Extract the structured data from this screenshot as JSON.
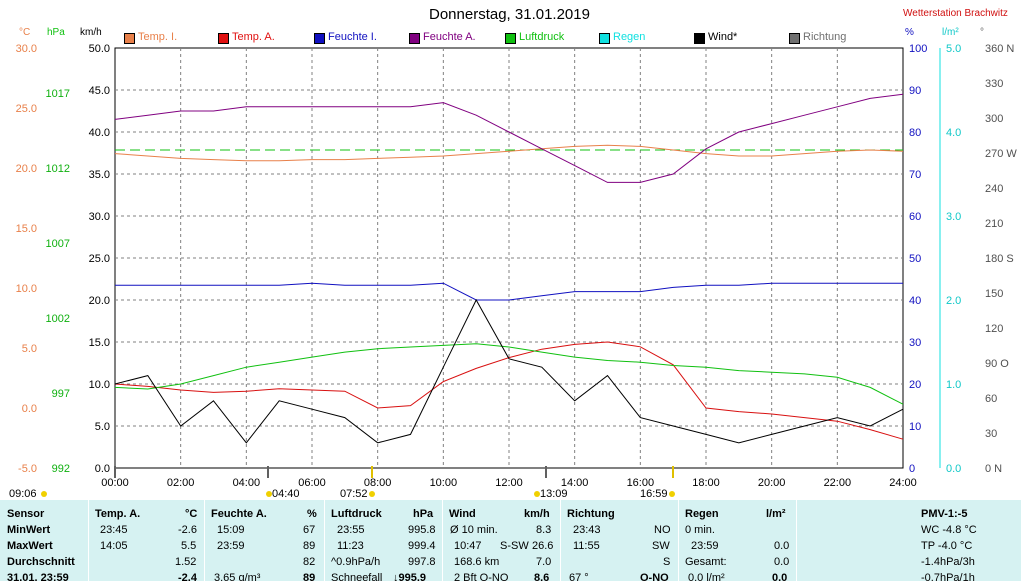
{
  "header": {
    "title": "Donnerstag, 31.01.2019",
    "station": "Wetterstation Brachwitz"
  },
  "colors": {
    "temp_inside": "#e8804a",
    "temp_outside": "#d81010",
    "humidity_inside": "#1010c0",
    "humidity_outside": "#800080",
    "pressure": "#10c010",
    "rain": "#10e0e0",
    "wind": "#000000",
    "direction": "#606060",
    "panel_bg": "#d6f2f2"
  },
  "legend": [
    {
      "label": "Temp. I.",
      "color": "#e8804a"
    },
    {
      "label": "Temp. A.",
      "color": "#e01010"
    },
    {
      "label": "Feuchte I.",
      "color": "#1010c0"
    },
    {
      "label": "Feuchte A.",
      "color": "#800080"
    },
    {
      "label": "Luftdruck",
      "color": "#10c010"
    },
    {
      "label": "Regen",
      "color": "#10e0e0"
    },
    {
      "label": "Wind*",
      "color": "#000000"
    },
    {
      "label": "Richtung",
      "color": "#707070"
    }
  ],
  "axes": {
    "celsius": {
      "unit": "°C",
      "ticks": [
        "30.0",
        "25.0",
        "20.0",
        "15.0",
        "10.0",
        "5.0",
        "0.0",
        "-5.0"
      ]
    },
    "hpa": {
      "unit": "hPa",
      "ticks": [
        "1017",
        "1012",
        "1007",
        "1002",
        "997",
        "992"
      ]
    },
    "kmh": {
      "unit": "km/h",
      "ticks": [
        "50.0",
        "45.0",
        "40.0",
        "35.0",
        "30.0",
        "25.0",
        "20.0",
        "15.0",
        "10.0",
        "5.0",
        "0.0"
      ]
    },
    "percent": {
      "unit": "%",
      "ticks": [
        "100",
        "90",
        "80",
        "70",
        "60",
        "50",
        "40",
        "30",
        "20",
        "10",
        "0"
      ]
    },
    "rain": {
      "unit": "l/m²",
      "ticks": [
        "5.0",
        "4.0",
        "3.0",
        "2.0",
        "1.0",
        "0.0"
      ]
    },
    "direction": {
      "unit": "°",
      "ticks": [
        "360 N",
        "330",
        "300",
        "270 W",
        "240",
        "210",
        "180 S",
        "150",
        "120",
        "90 O",
        "60",
        "30",
        "0 N"
      ]
    },
    "time": {
      "ticks": [
        "00:00",
        "02:00",
        "04:00",
        "06:00",
        "08:00",
        "10:00",
        "12:00",
        "14:00",
        "16:00",
        "18:00",
        "20:00",
        "22:00",
        "24:00"
      ]
    }
  },
  "sun_markers": [
    "09:06",
    "04:40",
    "07:52",
    "13:09",
    "16:59"
  ],
  "chart_data": {
    "type": "line",
    "x_hours": [
      0,
      1,
      2,
      3,
      4,
      5,
      6,
      7,
      8,
      9,
      10,
      11,
      12,
      13,
      14,
      15,
      16,
      17,
      18,
      19,
      20,
      21,
      22,
      23,
      24
    ],
    "series": [
      {
        "name": "Temp. I.",
        "axis": "celsius",
        "values": [
          21.2,
          21.0,
          20.8,
          20.7,
          20.6,
          20.6,
          20.7,
          20.7,
          20.8,
          20.9,
          21.0,
          21.2,
          21.4,
          21.6,
          21.8,
          21.9,
          21.8,
          21.5,
          21.2,
          21.0,
          21.0,
          21.2,
          21.4,
          21.5,
          21.4
        ]
      },
      {
        "name": "Temp. A.",
        "axis": "celsius",
        "values": [
          2.0,
          1.8,
          1.5,
          1.3,
          1.4,
          1.6,
          1.5,
          1.4,
          0.0,
          0.2,
          2.2,
          3.3,
          4.2,
          4.9,
          5.3,
          5.5,
          5.1,
          3.6,
          0.0,
          -0.3,
          -0.5,
          -0.8,
          -1.1,
          -1.8,
          -2.6
        ]
      },
      {
        "name": "Feuchte I.",
        "axis": "percent",
        "values": [
          43.5,
          43.5,
          43.5,
          43.5,
          43.5,
          43.5,
          44,
          43.5,
          43.5,
          43.5,
          44,
          40,
          40,
          41,
          42,
          42,
          42,
          43,
          43.5,
          43.5,
          44,
          44,
          44,
          44,
          44
        ]
      },
      {
        "name": "Feuchte A.",
        "axis": "percent",
        "values": [
          83,
          84,
          85,
          85,
          86,
          86,
          86,
          86,
          86,
          86,
          87,
          84,
          80,
          76,
          72,
          68,
          68,
          70,
          76,
          80,
          82,
          84,
          86,
          88,
          89
        ]
      },
      {
        "name": "Luftdruck",
        "axis": "hpa",
        "values": [
          996.8,
          996.7,
          997.0,
          997.5,
          998.0,
          998.3,
          998.6,
          998.9,
          999.1,
          999.2,
          999.3,
          999.4,
          999.2,
          998.9,
          998.6,
          998.4,
          998.3,
          998.1,
          998.0,
          997.8,
          997.7,
          997.6,
          997.4,
          996.8,
          995.8
        ]
      },
      {
        "name": "Wind*",
        "axis": "kmh",
        "values": [
          10,
          11,
          5,
          8,
          3,
          8,
          7,
          6,
          3,
          4,
          12,
          20,
          13,
          12,
          8,
          11,
          6,
          5,
          4,
          3,
          4,
          5,
          6,
          5,
          7
        ]
      }
    ],
    "ylim": [
      0,
      50
    ]
  },
  "summary": {
    "sensor": {
      "header": "Sensor",
      "rows": [
        "MinWert",
        "MaxWert",
        "Durchschnitt",
        "31.01. 23:59"
      ]
    },
    "temp": {
      "header": "Temp. A.",
      "unit": "°C",
      "rows": [
        {
          "time": "23:45",
          "value": "-2.6"
        },
        {
          "time": "14:05",
          "value": "5.5"
        },
        {
          "time": "",
          "value": "1.52"
        },
        {
          "time": "",
          "value": "-2.4"
        }
      ]
    },
    "humidity": {
      "header": "Feuchte A.",
      "unit": "%",
      "rows": [
        {
          "time": "15:09",
          "value": "67"
        },
        {
          "time": "23:59",
          "value": "89"
        },
        {
          "time": "",
          "value": "82"
        },
        {
          "time": "3.65 g/m³",
          "value": "89"
        }
      ]
    },
    "pressure": {
      "header": "Luftdruck",
      "unit": "hPa",
      "rows": [
        {
          "time": "23:55",
          "value": "995.8"
        },
        {
          "time": "11:23",
          "value": "999.4"
        },
        {
          "time": "^0.9hPa/h",
          "value": "997.8"
        },
        {
          "time": "Schneefall",
          "value": "↓995.9"
        }
      ]
    },
    "wind": {
      "header": "Wind",
      "unit": "km/h",
      "rows": [
        {
          "a": "Ø 10 min.",
          "b": "",
          "value": "8.3"
        },
        {
          "a": "10:47",
          "b": "S-SW",
          "value": "26.6"
        },
        {
          "a": "168.6 km",
          "b": "",
          "value": "7.0"
        },
        {
          "a": "2 Bft O-NO",
          "b": "",
          "value": "8.6"
        }
      ]
    },
    "direction": {
      "header": "Richtung",
      "rows": [
        {
          "time": "23:43",
          "value": "NO"
        },
        {
          "time": "11:55",
          "value": "SW"
        },
        {
          "time": "",
          "value": "S"
        },
        {
          "time": "67 °",
          "value": "O-NO"
        }
      ]
    },
    "rain": {
      "header": "Regen",
      "unit": "l/m²",
      "rows": [
        {
          "time": "0 min.",
          "value": ""
        },
        {
          "time": "23:59",
          "value": "0.0"
        },
        {
          "time": "Gesamt:",
          "value": "0.0"
        },
        {
          "time": "0.0 l/m²",
          "value": "0.0"
        }
      ]
    },
    "pmv": {
      "header": "PMV-1:-5",
      "rows": [
        "WC -4.8 °C",
        "TP -4.0 °C",
        "-1.4hPa/3h",
        "-0.7hPa/1h"
      ]
    }
  }
}
